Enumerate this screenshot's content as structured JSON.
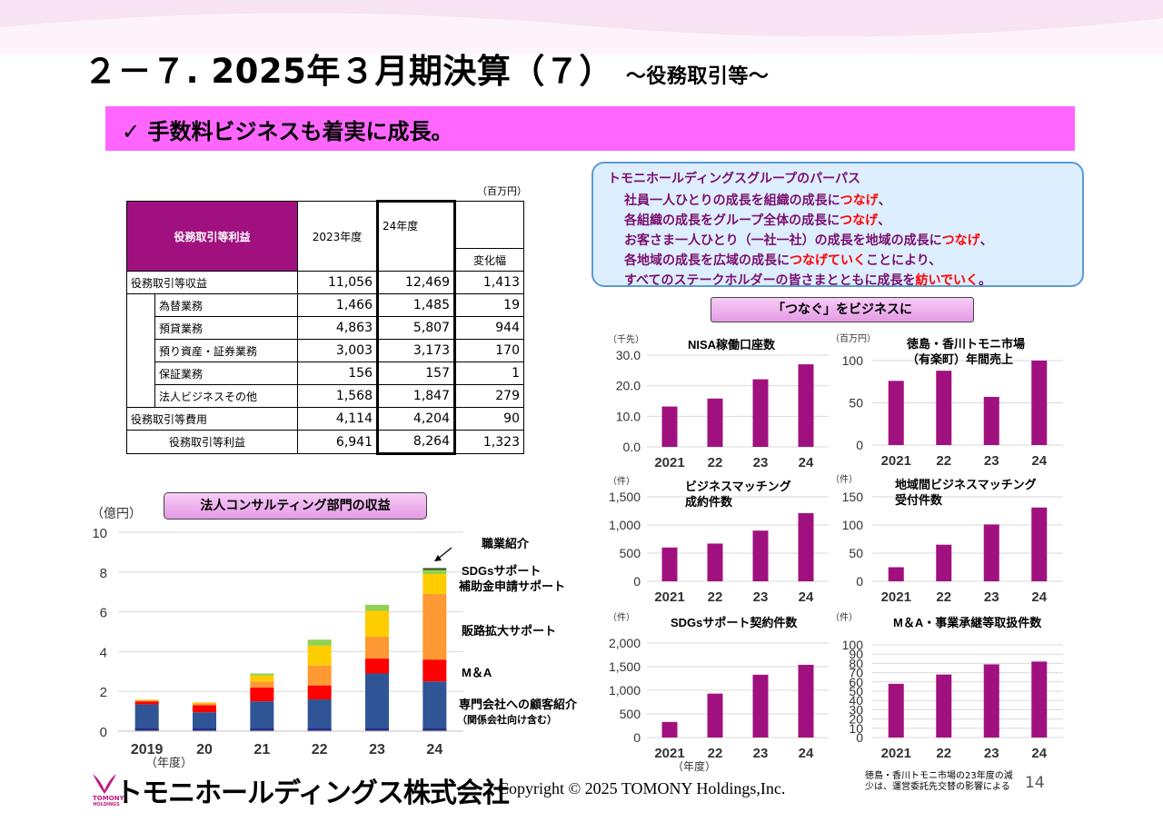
{
  "title": {
    "main": "２－７. 2025年３月期決算（７）",
    "sub": "～役務取引等～"
  },
  "banner": "✓  手数料ビジネスも着実に成長。",
  "table": {
    "unit": "（百万円）",
    "header": {
      "item": "役務取引等利益",
      "col1": "2023年度",
      "col2": "24年度",
      "col3": "変化幅"
    },
    "rows": [
      {
        "label": "役務取引等収益",
        "v1": "11,056",
        "v2": "12,469",
        "v3": "1,413"
      },
      {
        "label": "為替業務",
        "v1": "1,466",
        "v2": "1,485",
        "v3": "19"
      },
      {
        "label": "預貸業務",
        "v1": "4,863",
        "v2": "5,807",
        "v3": "944"
      },
      {
        "label": "預り資産・証券業務",
        "v1": "3,003",
        "v2": "3,173",
        "v3": "170"
      },
      {
        "label": "保証業務",
        "v1": "156",
        "v2": "157",
        "v3": "1"
      },
      {
        "label": "法人ビジネスその他",
        "v1": "1,568",
        "v2": "1,847",
        "v3": "279"
      },
      {
        "label": "役務取引等費用",
        "v1": "4,114",
        "v2": "4,204",
        "v3": "90"
      },
      {
        "label": "役務取引等利益",
        "v1": "6,941",
        "v2": "8,264",
        "v3": "1,323"
      }
    ]
  },
  "purpose": {
    "heading": "トモニホールディングスグループのパーパス",
    "lines": [
      [
        "社員一人ひとりの成長を組織の成長に",
        "つなげ",
        "、"
      ],
      [
        "各組織の成長をグループ全体の成長に",
        "つなげ",
        "、"
      ],
      [
        "お客さま一人ひとり（一社一社）の成長を地域の成長に",
        "つなげ",
        "、"
      ],
      [
        "各地域の成長を広域の成長に",
        "つなげていく",
        "ことにより、"
      ],
      [
        "すべてのステークホルダーの皆さまとともに成長を",
        "紡いでいく",
        "。"
      ]
    ]
  },
  "tsunagu_label": "「つなぐ」をビジネスに",
  "consult_label": "法人コンサルティング部門の収益",
  "footer": {
    "logo": "トモニホールディングス株式会社",
    "logo_small": "TOMONY",
    "logo_small2": "HOLDINGS",
    "copyright": "Copyright © 2025 TOMONY Holdings,Inc.",
    "note": "徳島・香川トモニ市場の23年度の減少は、運営委託先交替の影響による",
    "page": "14"
  },
  "colors": {
    "bar": "#a0117f",
    "banner": "#ff66ff",
    "header_cell": "#a0117f"
  },
  "chart_data": [
    {
      "type": "bar",
      "stacked": true,
      "unit": "（億円）",
      "xunit": "（年度）",
      "categories": [
        "2019",
        "20",
        "21",
        "22",
        "23",
        "24"
      ],
      "ylim": [
        0,
        10
      ],
      "yticks": [
        0,
        2,
        4,
        6,
        8,
        10
      ],
      "series": [
        {
          "name": "専門会社への顧客紹介",
          "name2": "（関係会社向け含む）",
          "color": "#2f5597",
          "values": [
            1.35,
            0.95,
            1.5,
            1.6,
            2.9,
            2.5
          ]
        },
        {
          "name": "M＆A",
          "color": "#ff0000",
          "values": [
            0.15,
            0.35,
            0.7,
            0.7,
            0.75,
            1.1
          ]
        },
        {
          "name": "販路拡大サポート",
          "color": "#ff9933",
          "values": [
            0.05,
            0.1,
            0.3,
            1.0,
            1.1,
            3.3
          ]
        },
        {
          "name": "補助金申請サポート",
          "color": "#ffcc00",
          "values": [
            0.03,
            0.05,
            0.3,
            1.0,
            1.3,
            1.0
          ]
        },
        {
          "name": "SDGsサポート",
          "color": "#92d050",
          "values": [
            0,
            0,
            0.1,
            0.3,
            0.3,
            0.2
          ]
        },
        {
          "name": "職業紹介",
          "color": "#375623",
          "values": [
            0,
            0,
            0,
            0,
            0,
            0.1
          ]
        }
      ]
    },
    {
      "type": "bar",
      "title": "NISA稼働口座数",
      "unit": "（千先）",
      "categories": [
        "2021",
        "22",
        "23",
        "24"
      ],
      "values": [
        13.2,
        15.8,
        22.1,
        27.0
      ],
      "ylim": [
        0,
        30
      ],
      "yticks": [
        "0.0",
        "10.0",
        "20.0",
        "30.0"
      ]
    },
    {
      "type": "bar",
      "title": "徳島・香川トモニ市場",
      "title2": "（有楽町）年間売上",
      "unit": "（百万円）",
      "categories": [
        "2021",
        "22",
        "23",
        "24"
      ],
      "values": [
        76,
        88,
        57,
        100
      ],
      "ylim": [
        0,
        100
      ],
      "yticks": [
        "0",
        "50",
        "100"
      ]
    },
    {
      "type": "bar",
      "title": "ビジネスマッチング",
      "title2": "成約件数",
      "unit": "（件）",
      "categories": [
        "2021",
        "22",
        "23",
        "24"
      ],
      "values": [
        600,
        670,
        900,
        1210
      ],
      "ylim": [
        0,
        1500
      ],
      "yticks": [
        "0",
        "500",
        "1,000",
        "1,500"
      ]
    },
    {
      "type": "bar",
      "title": "地域間ビジネスマッチング",
      "title2": "受付件数",
      "unit": "（件）",
      "categories": [
        "2021",
        "22",
        "23",
        "24"
      ],
      "values": [
        25,
        65,
        101,
        131
      ],
      "ylim": [
        0,
        150
      ],
      "yticks": [
        "0",
        "50",
        "100",
        "150"
      ]
    },
    {
      "type": "bar",
      "title": "SDGsサポート契約件数",
      "unit": "（件）",
      "xunit": "（年度）",
      "categories": [
        "2021",
        "22",
        "23",
        "24"
      ],
      "values": [
        330,
        930,
        1330,
        1540
      ],
      "ylim": [
        0,
        2000
      ],
      "yticks": [
        "0",
        "500",
        "1,000",
        "1,500",
        "2,000"
      ]
    },
    {
      "type": "bar",
      "title": "M＆A・事業承継等取扱件数",
      "unit": "（件）",
      "categories": [
        "2021",
        "22",
        "23",
        "24"
      ],
      "values": [
        58,
        68,
        79,
        82
      ],
      "ylim": [
        0,
        100
      ],
      "yticks": [
        "0",
        "10",
        "20",
        "30",
        "40",
        "50",
        "60",
        "70",
        "80",
        "90",
        "100"
      ]
    }
  ]
}
